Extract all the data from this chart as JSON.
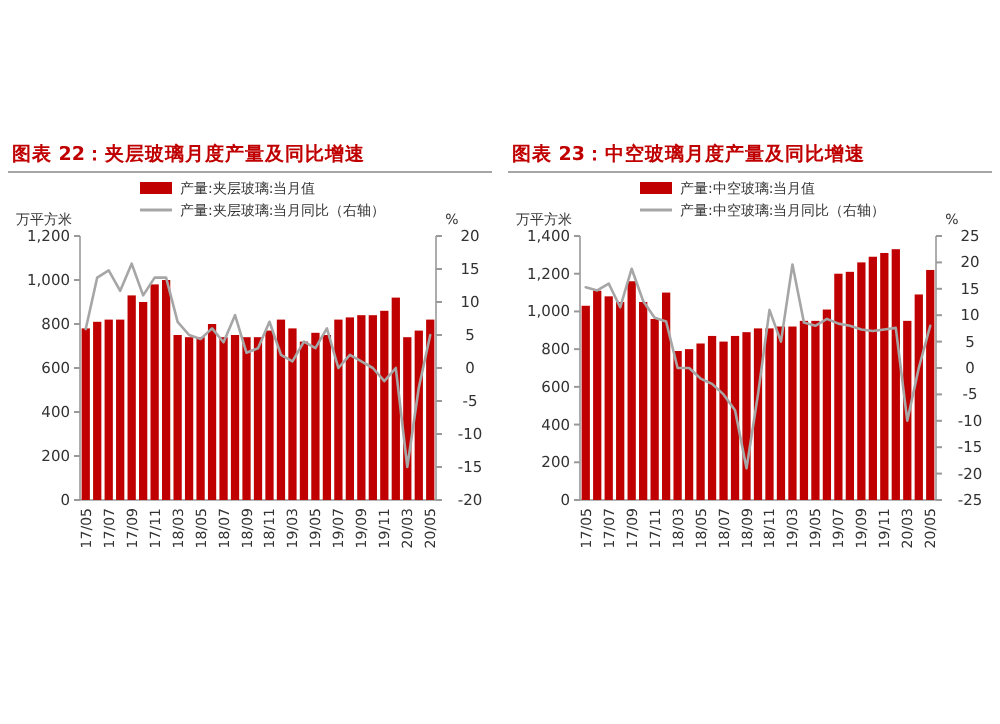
{
  "chart_data": [
    {
      "type": "bar",
      "title": "图表 22：夹层玻璃月度产量及同比增速",
      "ylabel": "万平方米",
      "y2label": "%",
      "legend": "top",
      "grid": false,
      "categories": [
        "17/05",
        null,
        "17/07",
        null,
        "17/09",
        null,
        "17/11",
        null,
        "18/03",
        null,
        "18/05",
        null,
        "18/07",
        null,
        "18/09",
        null,
        "18/11",
        null,
        "19/03",
        null,
        "19/05",
        null,
        "19/07",
        null,
        "19/09",
        null,
        "19/11",
        null,
        "20/03",
        null,
        "20/05"
      ],
      "ylim": [
        0,
        1200
      ],
      "yticks": [
        0,
        200,
        400,
        600,
        800,
        {
          "value": 1000,
          "label": "1,000"
        },
        {
          "value": 1200,
          "label": "1,200"
        }
      ],
      "y2lim": [
        -20,
        20
      ],
      "y2ticks": [
        -20,
        -15,
        -10,
        -5,
        0,
        5,
        10,
        15,
        20
      ],
      "series": [
        {
          "name": "产量:夹层玻璃:当月值",
          "color": "#c00000",
          "values": [
            780,
            810,
            820,
            820,
            930,
            900,
            980,
            1000,
            750,
            740,
            740,
            800,
            740,
            750,
            740,
            740,
            770,
            820,
            780,
            720,
            760,
            750,
            820,
            830,
            840,
            840,
            860,
            920,
            740,
            770,
            820
          ]
        },
        {
          "name": "产量:夹层玻璃:当月同比（右轴）",
          "type": "line",
          "axis": "y2",
          "color": "#a6a6a6",
          "values": [
            5.9,
            13.7,
            14.8,
            11.7,
            15.8,
            11,
            13.7,
            13.7,
            7,
            5,
            4.4,
            6,
            3.9,
            8,
            2.3,
            3,
            7,
            2,
            1,
            4,
            3,
            6,
            0,
            2,
            1,
            0,
            -2,
            0,
            -15,
            -3,
            5
          ]
        }
      ]
    },
    {
      "type": "bar",
      "title": "图表 23：中空玻璃月度产量及同比增速",
      "ylabel": "万平方米",
      "y2label": "%",
      "legend": "top",
      "grid": false,
      "categories": [
        "17/05",
        null,
        "17/07",
        null,
        "17/09",
        null,
        "17/11",
        null,
        "18/03",
        null,
        "18/05",
        null,
        "18/07",
        null,
        "18/09",
        null,
        "18/11",
        null,
        "19/03",
        null,
        "19/05",
        null,
        "19/07",
        null,
        "19/09",
        null,
        "19/11",
        null,
        "20/03",
        null,
        "20/05"
      ],
      "ylim": [
        0,
        1400
      ],
      "yticks": [
        0,
        200,
        400,
        600,
        800,
        {
          "value": 1000,
          "label": "1,000"
        },
        {
          "value": 1200,
          "label": "1,200"
        },
        {
          "value": 1400,
          "label": "1,400"
        }
      ],
      "y2lim": [
        -25,
        25
      ],
      "y2ticks": [
        -25,
        -20,
        -15,
        -10,
        -5,
        0,
        5,
        10,
        15,
        20,
        25
      ],
      "series": [
        {
          "name": "产量:中空玻璃:当月值",
          "color": "#c00000",
          "values": [
            1030,
            1110,
            1080,
            1050,
            1160,
            1050,
            960,
            1100,
            790,
            800,
            830,
            870,
            840,
            870,
            890,
            910,
            910,
            920,
            920,
            950,
            950,
            1010,
            1200,
            1210,
            1260,
            1290,
            1310,
            1330,
            950,
            1090,
            1220
          ]
        },
        {
          "name": "产量:中空玻璃:当月同比（右轴）",
          "type": "line",
          "axis": "y2",
          "color": "#a6a6a6",
          "values": [
            15.3,
            14.7,
            16,
            11.5,
            18.8,
            12.7,
            9.5,
            8.8,
            0,
            0,
            -2,
            -3,
            -5,
            -8,
            -19,
            -5,
            11,
            5,
            19.6,
            8.6,
            8,
            9.3,
            8.4,
            8,
            7.3,
            7,
            7.3,
            7.6,
            -10,
            0,
            8
          ]
        }
      ]
    }
  ]
}
